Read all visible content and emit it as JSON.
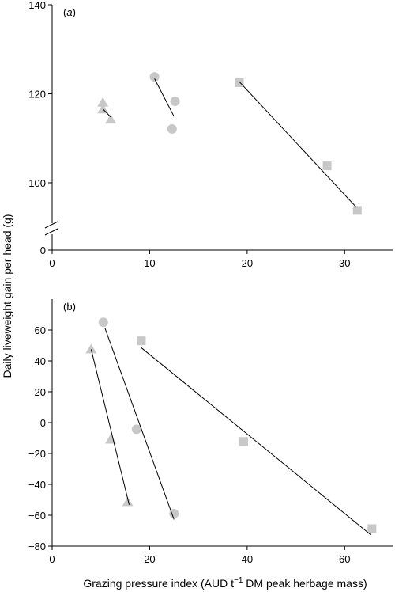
{
  "figure": {
    "ylabel": "Daily liveweight gain per head (g)",
    "xlabel_main": "Grazing pressure index (AUD t",
    "xlabel_sup": "−1",
    "xlabel_rest": " DM peak herbage mass)",
    "marker_color": "#c8c8c8",
    "line_color": "#000000"
  },
  "chart_data": [
    {
      "type": "scatter",
      "panel_label_open": "(",
      "panel_label_letter": "a",
      "panel_label_close": ")",
      "xlim": [
        0,
        35
      ],
      "ylim": [
        85,
        140
      ],
      "axis_break": true,
      "xticks": [
        0,
        10,
        20,
        30
      ],
      "yticks": [
        100,
        120,
        140
      ],
      "y_zero_label": "0",
      "series": [
        {
          "marker": "triangle",
          "points": [
            [
              5.2,
              118
            ],
            [
              5.2,
              116.5
            ],
            [
              6.0,
              114.2
            ]
          ],
          "fit": [
            [
              5.2,
              116.6
            ],
            [
              6.0,
              114.8
            ]
          ]
        },
        {
          "marker": "circle",
          "points": [
            [
              10.5,
              123.8
            ],
            [
              12.6,
              118.3
            ],
            [
              12.3,
              112.1
            ]
          ],
          "fit": [
            [
              10.5,
              123.4
            ],
            [
              12.5,
              114.9
            ]
          ]
        },
        {
          "marker": "square",
          "points": [
            [
              19.2,
              122.5
            ],
            [
              28.2,
              103.8
            ],
            [
              31.3,
              93.8
            ]
          ],
          "fit": [
            [
              19.2,
              122.7
            ],
            [
              31.2,
              94.5
            ]
          ]
        }
      ]
    },
    {
      "type": "scatter",
      "panel_label_open": "(",
      "panel_label_letter": "b",
      "panel_label_close": ")",
      "xlim": [
        0,
        70
      ],
      "ylim": [
        -80,
        80
      ],
      "xticks": [
        0,
        20,
        40,
        60
      ],
      "yticks": [
        -80,
        -60,
        -40,
        -20,
        0,
        20,
        40,
        60
      ],
      "series": [
        {
          "marker": "triangle",
          "points": [
            [
              8.0,
              47.5
            ],
            [
              12.0,
              -11.0
            ],
            [
              15.5,
              -51.5
            ]
          ],
          "fit": [
            [
              8.0,
              47.5
            ],
            [
              15.8,
              -53.2
            ]
          ]
        },
        {
          "marker": "circle",
          "points": [
            [
              10.5,
              65.0
            ],
            [
              17.3,
              -4.3
            ],
            [
              25.0,
              -59.0
            ]
          ],
          "fit": [
            [
              10.8,
              61.5
            ],
            [
              25.0,
              -62.8
            ]
          ]
        },
        {
          "marker": "square",
          "points": [
            [
              18.3,
              53.0
            ],
            [
              39.3,
              -12.2
            ],
            [
              65.6,
              -68.7
            ]
          ],
          "fit": [
            [
              18.3,
              48.5
            ],
            [
              65.4,
              -72.8
            ]
          ]
        }
      ]
    }
  ]
}
